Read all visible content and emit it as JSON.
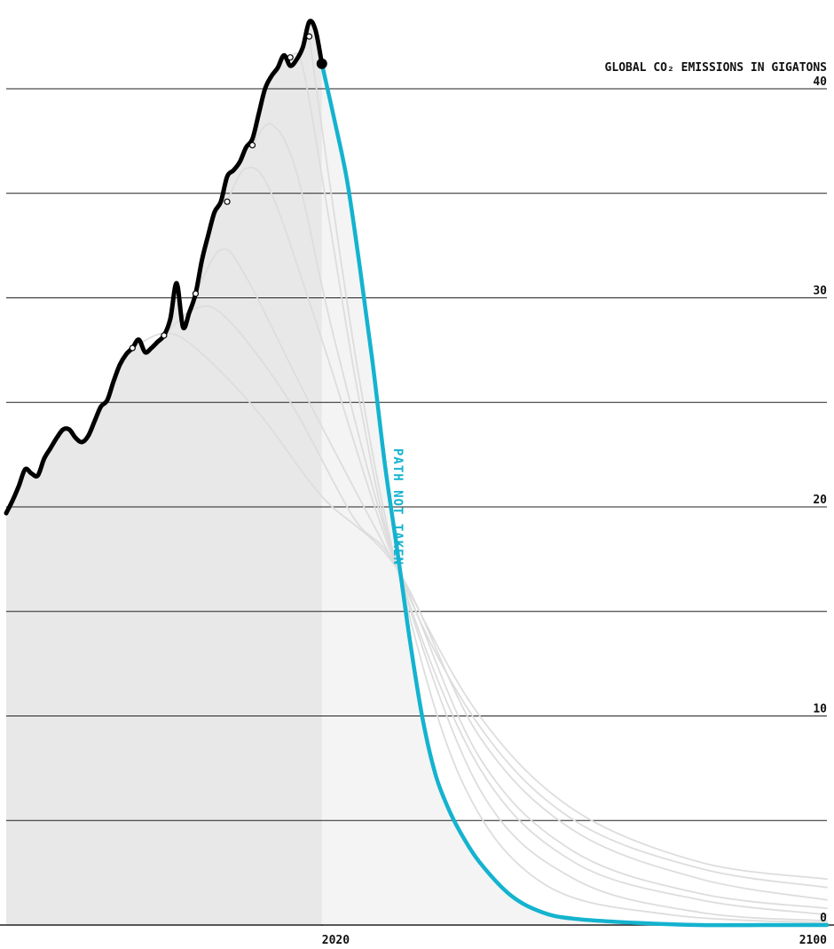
{
  "chart_data": {
    "type": "line",
    "ylabel": "GLOBAL CO₂ EMISSIONS IN GIGATONS",
    "xlim": [
      1970,
      2100
    ],
    "ylim": [
      0,
      40
    ],
    "xticks": [
      2020,
      2100
    ],
    "yticks": [
      0,
      10,
      20,
      30,
      40
    ],
    "minor_yticks": [
      5,
      15,
      25,
      35
    ],
    "grid": true,
    "series": [
      {
        "color": "#dddddd",
        "x": [
          1990,
          1995,
          2000,
          2010,
          2020,
          2032,
          2045,
          2060,
          2080,
          2100
        ],
        "values": [
          27.6,
          28.3,
          27.6,
          24.5,
          20.5,
          17,
          9,
          4.5,
          2.2,
          1.2
        ]
      },
      {
        "color": "#dddddd",
        "x": [
          1995,
          2000,
          2005,
          2015,
          2025,
          2032,
          2045,
          2060,
          2080,
          2100
        ],
        "values": [
          28.2,
          29.5,
          29,
          25,
          19.5,
          17,
          8,
          3.5,
          1.5,
          0.8
        ]
      },
      {
        "color": "#dddddd",
        "x": [
          2000,
          2004,
          2008,
          2018,
          2032,
          2045,
          2060,
          2080,
          2100
        ],
        "values": [
          30.2,
          32.3,
          31,
          25,
          17,
          10,
          5.5,
          3,
          2.2
        ]
      },
      {
        "color": "#dddddd",
        "x": [
          2005,
          2008,
          2012,
          2020,
          2032,
          2045,
          2060,
          2080,
          2100
        ],
        "values": [
          34.6,
          36.2,
          35,
          28,
          17,
          9.5,
          5,
          2.7,
          1.8
        ]
      },
      {
        "color": "#dddddd",
        "x": [
          2009,
          2012,
          2016,
          2022,
          2032,
          2045,
          2060,
          2080,
          2100
        ],
        "values": [
          37.3,
          38.3,
          36,
          28,
          17,
          7.5,
          3,
          1.2,
          0.5
        ]
      },
      {
        "color": "#dddddd",
        "x": [
          2015,
          2017,
          2021,
          2026,
          2032,
          2045,
          2060,
          2080,
          2100
        ],
        "values": [
          41.5,
          41,
          34,
          25,
          17,
          6.5,
          2.2,
          0.6,
          0.2
        ]
      },
      {
        "color": "#dddddd",
        "x": [
          2018,
          2021,
          2026,
          2032,
          2042,
          2055,
          2075,
          2100
        ],
        "values": [
          42.5,
          36,
          26,
          17,
          7,
          2,
          0.5,
          0.1
        ]
      },
      {
        "name": "PATH NOT TAKEN",
        "color": "#14b3cf",
        "x": [
          2020,
          2022,
          2024,
          2026,
          2028,
          2030,
          2032,
          2034,
          2036,
          2038,
          2040,
          2042,
          2045,
          2050,
          2055,
          2060,
          2070,
          2080,
          2090,
          2100
        ],
        "values": [
          41.2,
          38.5,
          35.6,
          31.5,
          27,
          22,
          17.8,
          13.5,
          9.8,
          7.2,
          5.6,
          4.4,
          3.0,
          1.4,
          0.6,
          0.3,
          0.1,
          0,
          0,
          0
        ]
      },
      {
        "color": "#000000",
        "x": [
          1970,
          1971,
          1972,
          1973,
          1974,
          1975,
          1976,
          1977,
          1978,
          1979,
          1980,
          1981,
          1982,
          1983,
          1984,
          1985,
          1986,
          1987,
          1988,
          1989,
          1990,
          1991,
          1992,
          1993,
          1994,
          1995,
          1996,
          1997,
          1998,
          1999,
          2000,
          2001,
          2002,
          2003,
          2004,
          2005,
          2006,
          2007,
          2008,
          2009,
          2010,
          2011,
          2012,
          2013,
          2014,
          2015,
          2016,
          2017,
          2018,
          2019,
          2020
        ],
        "values": [
          19.7,
          20.3,
          21.0,
          21.8,
          21.6,
          21.5,
          22.3,
          22.8,
          23.3,
          23.7,
          23.7,
          23.3,
          23.1,
          23.4,
          24.1,
          24.8,
          25.1,
          26.0,
          26.8,
          27.3,
          27.6,
          28.0,
          27.4,
          27.6,
          27.9,
          28.2,
          29.0,
          30.7,
          28.6,
          29.3,
          30.2,
          31.8,
          33.0,
          34.1,
          34.6,
          35.8,
          36.1,
          36.5,
          37.2,
          37.6,
          38.8,
          40.0,
          40.6,
          41.0,
          41.6,
          41.1,
          41.4,
          42.0,
          43.2,
          42.8,
          41.2
        ]
      }
    ]
  }
}
